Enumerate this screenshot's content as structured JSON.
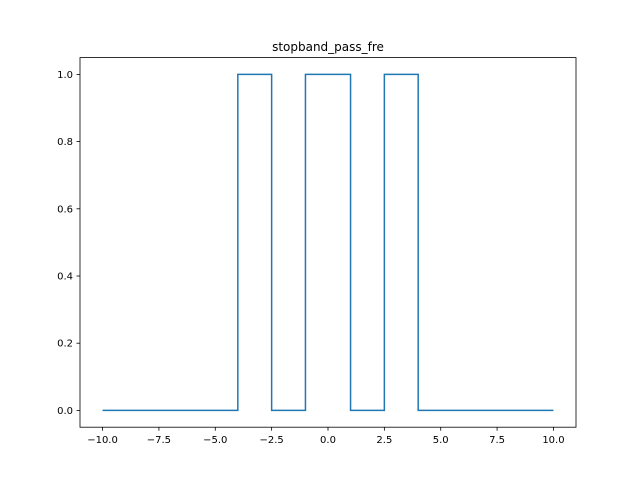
{
  "chart_data": {
    "type": "line",
    "title": "stopband_pass_fre",
    "xlabel": "",
    "ylabel": "",
    "xlim": [
      -11.0,
      11.0
    ],
    "ylim": [
      -0.05,
      1.05
    ],
    "grid": false,
    "x_ticks": [
      -10.0,
      -7.5,
      -5.0,
      -2.5,
      0.0,
      2.5,
      5.0,
      7.5,
      10.0
    ],
    "x_tick_labels": [
      "−10.0",
      "−7.5",
      "−5.0",
      "−2.5",
      "0.0",
      "2.5",
      "5.0",
      "7.5",
      "10.0"
    ],
    "y_ticks": [
      0.0,
      0.2,
      0.4,
      0.6,
      0.8,
      1.0
    ],
    "y_tick_labels": [
      "0.0",
      "0.2",
      "0.4",
      "0.6",
      "0.8",
      "1.0"
    ],
    "series": [
      {
        "color": "#1f77b4",
        "x": [
          -10.0,
          -4.0,
          -4.0,
          -2.5,
          -2.5,
          -1.0,
          -1.0,
          1.0,
          1.0,
          2.5,
          2.5,
          4.0,
          4.0,
          10.0
        ],
        "y": [
          0,
          0,
          1,
          1,
          0,
          0,
          1,
          1,
          0,
          0,
          1,
          1,
          0,
          0
        ]
      }
    ]
  }
}
